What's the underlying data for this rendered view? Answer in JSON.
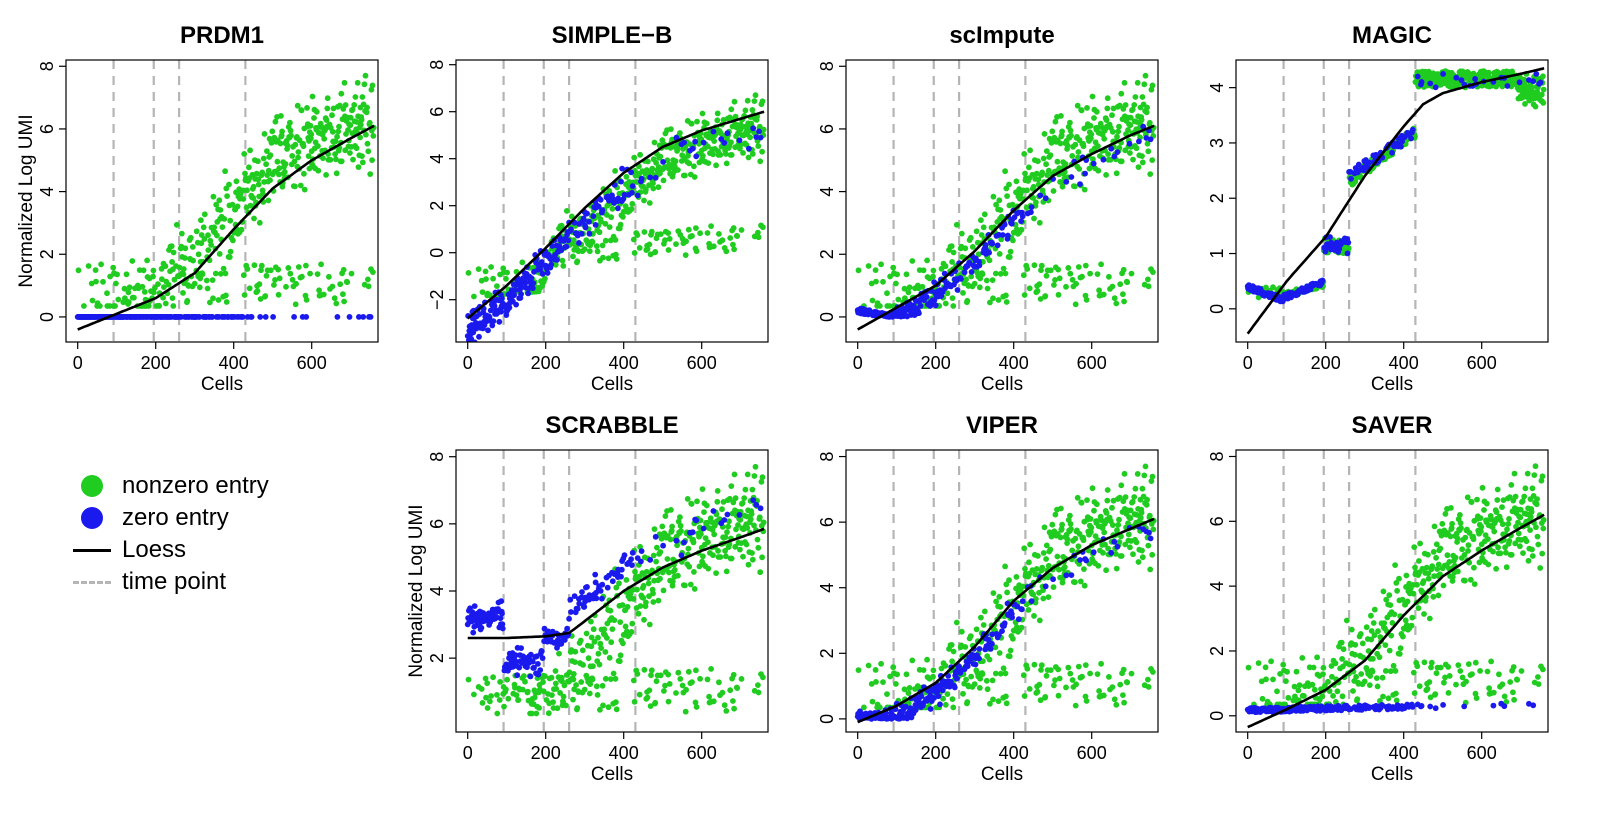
{
  "colors": {
    "nonzero": "#1fcc1f",
    "zero": "#1a1aee",
    "loess": "#000000",
    "timepoint": "#b5b5b5"
  },
  "legend": {
    "items": [
      {
        "label": "nonzero entry",
        "kind": "dot",
        "color": "#1fcc1f"
      },
      {
        "label": "zero entry",
        "kind": "dot",
        "color": "#1a1aee"
      },
      {
        "label": "Loess",
        "kind": "line",
        "color": "#000000"
      },
      {
        "label": "time point",
        "kind": "dash",
        "color": "#b5b5b5"
      }
    ]
  },
  "chart_data": [
    {
      "type": "scatter",
      "title": "PRDM1",
      "xlabel": "Cells",
      "ylabel": "Normalized Log UMI",
      "xlim": [
        -30,
        770
      ],
      "ylim": [
        -0.8,
        8.2
      ],
      "xticks": [
        0,
        200,
        400,
        600
      ],
      "xtick_labels": [
        "0",
        "200",
        "400",
        "600"
      ],
      "yticks": [
        0,
        2,
        4,
        6,
        8
      ],
      "ytick_labels": [
        "0",
        "2",
        "4",
        "6",
        "8"
      ],
      "timepoints": [
        92,
        195,
        260,
        430
      ],
      "loess": {
        "x": [
          0,
          100,
          200,
          300,
          400,
          500,
          600,
          700,
          760
        ],
        "y": [
          -0.4,
          0.1,
          0.6,
          1.4,
          2.8,
          4.1,
          5.0,
          5.7,
          6.1
        ]
      },
      "series_rules": {
        "zero_mode": "flat",
        "zero_level": 0
      }
    },
    {
      "type": "scatter",
      "title": "SIMPLE−B",
      "xlabel": "Cells",
      "ylabel": "",
      "xlim": [
        -30,
        770
      ],
      "ylim": [
        -3.8,
        8.2
      ],
      "xticks": [
        0,
        200,
        400,
        600
      ],
      "xtick_labels": [
        "0",
        "200",
        "400",
        "600"
      ],
      "yticks": [
        -2,
        0,
        2,
        4,
        6,
        8
      ],
      "ytick_labels": [
        "−2",
        "0",
        "2",
        "4",
        "6",
        "8"
      ],
      "timepoints": [
        92,
        195,
        260,
        430
      ],
      "loess": {
        "x": [
          0,
          100,
          200,
          300,
          400,
          500,
          600,
          700,
          760
        ],
        "y": [
          -2.8,
          -1.4,
          0.2,
          1.9,
          3.4,
          4.5,
          5.2,
          5.7,
          6.0
        ]
      },
      "series_rules": {
        "zero_mode": "trend",
        "zero_offset": -0.6
      }
    },
    {
      "type": "scatter",
      "title": "scImpute",
      "xlabel": "Cells",
      "ylabel": "",
      "xlim": [
        -30,
        770
      ],
      "ylim": [
        -0.8,
        8.2
      ],
      "xticks": [
        0,
        200,
        400,
        600
      ],
      "xtick_labels": [
        "0",
        "200",
        "400",
        "600"
      ],
      "yticks": [
        0,
        2,
        4,
        6,
        8
      ],
      "ytick_labels": [
        "0",
        "2",
        "4",
        "6",
        "8"
      ],
      "timepoints": [
        92,
        195,
        260,
        430
      ],
      "loess": {
        "x": [
          0,
          100,
          200,
          300,
          400,
          500,
          600,
          700,
          760
        ],
        "y": [
          -0.4,
          0.3,
          1.0,
          2.1,
          3.4,
          4.5,
          5.2,
          5.8,
          6.1
        ]
      },
      "series_rules": {
        "zero_mode": "trend",
        "zero_offset": -0.3
      }
    },
    {
      "type": "scatter",
      "title": "MAGIC",
      "xlabel": "Cells",
      "ylabel": "",
      "xlim": [
        -30,
        770
      ],
      "ylim": [
        -0.6,
        4.5
      ],
      "xticks": [
        0,
        200,
        400,
        600
      ],
      "xtick_labels": [
        "0",
        "200",
        "400",
        "600"
      ],
      "yticks": [
        0,
        1,
        2,
        3,
        4
      ],
      "ytick_labels": [
        "0",
        "1",
        "2",
        "3",
        "4"
      ],
      "timepoints": [
        92,
        195,
        260,
        430
      ],
      "loess": {
        "x": [
          0,
          100,
          200,
          300,
          400,
          450,
          500,
          600,
          700,
          760
        ],
        "y": [
          -0.45,
          0.5,
          1.3,
          2.4,
          3.3,
          3.7,
          3.9,
          4.1,
          4.25,
          4.35
        ]
      },
      "series_rules": {
        "zero_mode": "magic"
      }
    },
    {
      "type": "scatter",
      "title": "SCRABBLE",
      "xlabel": "Cells",
      "ylabel": "Normalized Log UMI",
      "xlim": [
        -30,
        770
      ],
      "ylim": [
        -0.2,
        8.2
      ],
      "xticks": [
        0,
        200,
        400,
        600
      ],
      "xtick_labels": [
        "0",
        "200",
        "400",
        "600"
      ],
      "yticks": [
        2,
        4,
        6,
        8
      ],
      "ytick_labels": [
        "2",
        "4",
        "6",
        "8"
      ],
      "timepoints": [
        92,
        195,
        260,
        430
      ],
      "loess": {
        "x": [
          0,
          100,
          200,
          260,
          300,
          400,
          500,
          600,
          700,
          760
        ],
        "y": [
          2.6,
          2.6,
          2.65,
          2.75,
          3.1,
          4.0,
          4.7,
          5.2,
          5.6,
          5.85
        ]
      },
      "series_rules": {
        "zero_mode": "scrabble"
      }
    },
    {
      "type": "scatter",
      "title": "VIPER",
      "xlabel": "Cells",
      "ylabel": "",
      "xlim": [
        -30,
        770
      ],
      "ylim": [
        -0.4,
        8.2
      ],
      "xticks": [
        0,
        200,
        400,
        600
      ],
      "xtick_labels": [
        "0",
        "200",
        "400",
        "600"
      ],
      "yticks": [
        0,
        2,
        4,
        6,
        8
      ],
      "ytick_labels": [
        "0",
        "2",
        "4",
        "6",
        "8"
      ],
      "timepoints": [
        92,
        195,
        260,
        430
      ],
      "loess": {
        "x": [
          0,
          100,
          200,
          300,
          400,
          500,
          600,
          700,
          760
        ],
        "y": [
          -0.1,
          0.4,
          1.1,
          2.2,
          3.6,
          4.6,
          5.3,
          5.8,
          6.1
        ]
      },
      "series_rules": {
        "zero_mode": "trend",
        "zero_offset": -0.3
      }
    },
    {
      "type": "scatter",
      "title": "SAVER",
      "xlabel": "Cells",
      "ylabel": "",
      "xlim": [
        -30,
        770
      ],
      "ylim": [
        -0.5,
        8.2
      ],
      "xticks": [
        0,
        200,
        400,
        600
      ],
      "xtick_labels": [
        "0",
        "200",
        "400",
        "600"
      ],
      "yticks": [
        0,
        2,
        4,
        6,
        8
      ],
      "ytick_labels": [
        "0",
        "2",
        "4",
        "6",
        "8"
      ],
      "timepoints": [
        92,
        195,
        260,
        430
      ],
      "loess": {
        "x": [
          0,
          100,
          200,
          300,
          400,
          500,
          600,
          700,
          760
        ],
        "y": [
          -0.35,
          0.2,
          0.8,
          1.7,
          3.1,
          4.3,
          5.1,
          5.8,
          6.2
        ]
      },
      "series_rules": {
        "zero_mode": "flat",
        "zero_level": 0.1
      }
    }
  ]
}
